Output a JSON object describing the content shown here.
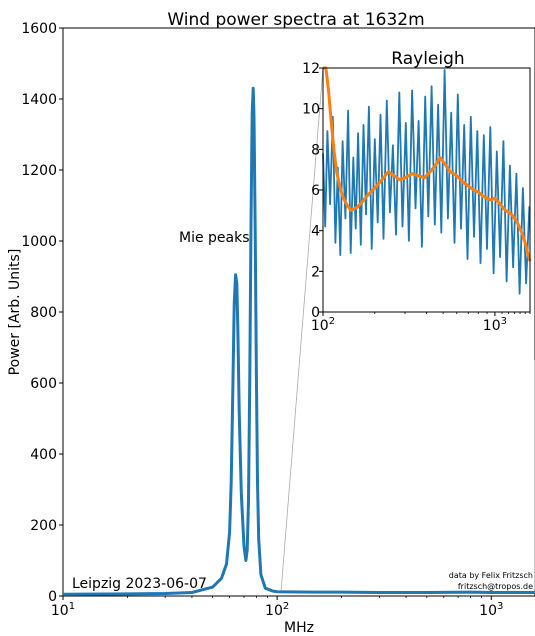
{
  "chart_data": [
    {
      "type": "line",
      "title": "Wind power spectra at 1632m",
      "xlabel": "MHz",
      "ylabel": "Power [Arb. Units]",
      "xscale": "log",
      "xlim": [
        10,
        1600
      ],
      "ylim": [
        0,
        1600
      ],
      "xticks": [
        {
          "value": 10,
          "base": "10",
          "exp": "1"
        },
        {
          "value": 100,
          "base": "10",
          "exp": "2"
        },
        {
          "value": 1000,
          "base": "10",
          "exp": "3"
        }
      ],
      "yticks": [
        0,
        200,
        400,
        600,
        800,
        1000,
        1200,
        1400,
        1600
      ],
      "series": [
        {
          "color": "#1f77b4",
          "x": [
            10,
            20,
            30,
            40,
            50,
            55,
            58,
            60,
            61,
            62,
            63,
            64,
            64.8,
            65.5,
            66.5,
            68,
            70,
            71.5,
            72.5,
            73.5,
            74.5,
            75.5,
            76.5,
            77.3,
            78,
            79,
            80,
            81,
            82,
            84,
            88,
            95,
            100,
            150,
            200,
            300,
            500,
            800,
            1000,
            1600
          ],
          "y": [
            5,
            6,
            7,
            10,
            25,
            50,
            90,
            180,
            320,
            560,
            820,
            905,
            880,
            760,
            520,
            290,
            140,
            100,
            130,
            270,
            620,
            1050,
            1360,
            1430,
            1350,
            1030,
            620,
            320,
            160,
            60,
            22,
            14,
            12,
            11,
            11,
            10,
            10,
            11,
            10,
            10
          ]
        }
      ],
      "annotations": [
        "Mie peaks",
        "Leipzig 2023-06-07",
        "data by Felix Fritzsch",
        "fritzsch@tropos.de"
      ]
    },
    {
      "type": "line",
      "title": "Rayleigh",
      "xscale": "log",
      "xlim": [
        100,
        1600
      ],
      "ylim": [
        0,
        12
      ],
      "xticks": [
        {
          "value": 100,
          "base": "10",
          "exp": "2"
        },
        {
          "value": 1000,
          "base": "10",
          "exp": "3"
        }
      ],
      "yticks": [
        0,
        2,
        4,
        6,
        8,
        10,
        12
      ],
      "series": [
        {
          "color": "#1f77b4",
          "x": [
            100,
            103,
            106,
            110,
            114,
            118,
            122,
            126,
            130,
            135,
            140,
            145,
            150,
            155,
            160,
            166,
            172,
            178,
            185,
            192,
            200,
            208,
            216,
            225,
            235,
            245,
            255,
            266,
            278,
            290,
            303,
            316,
            330,
            345,
            360,
            376,
            393,
            410,
            428,
            447,
            467,
            488,
            510,
            533,
            557,
            582,
            608,
            635,
            663,
            693,
            724,
            756,
            790,
            825,
            862,
            900,
            940,
            982,
            1026,
            1072,
            1120,
            1170,
            1222,
            1276,
            1333,
            1392,
            1454,
            1519,
            1587
          ],
          "y": [
            7.8,
            4.2,
            8.9,
            5.3,
            9.6,
            3.4,
            7.1,
            2.8,
            8.4,
            4.6,
            9.9,
            2.9,
            7.6,
            4.1,
            8.8,
            3.3,
            9.2,
            4.8,
            10.1,
            3.1,
            8.5,
            4.4,
            9.7,
            3.6,
            10.4,
            4.9,
            8.2,
            3.8,
            10.8,
            4.2,
            9.3,
            3.5,
            10.9,
            5.1,
            9.4,
            3.2,
            10.6,
            4.7,
            11.1,
            4.3,
            10.2,
            3.9,
            11.9,
            4.6,
            9.8,
            3.4,
            10.7,
            4.1,
            9.2,
            2.6,
            9.6,
            3.7,
            8.9,
            2.4,
            8.7,
            3.1,
            9.1,
            1.9,
            7.9,
            2.7,
            8.4,
            1.5,
            7.2,
            2.2,
            6.8,
            0.9,
            6.1,
            1.4,
            5.2
          ]
        },
        {
          "color": "#ff7f0e",
          "x": [
            100,
            104,
            108,
            112,
            116,
            120,
            125,
            130,
            137,
            145,
            155,
            165,
            180,
            200,
            220,
            240,
            260,
            280,
            300,
            330,
            360,
            390,
            420,
            450,
            480,
            510,
            550,
            600,
            650,
            700,
            750,
            800,
            850,
            900,
            950,
            1000,
            1050,
            1100,
            1150,
            1200,
            1250,
            1300,
            1350,
            1400,
            1450,
            1500,
            1550,
            1600
          ],
          "y": [
            12,
            12,
            10.8,
            9.2,
            7.9,
            6.9,
            6.2,
            5.7,
            5.3,
            5.0,
            5.1,
            5.3,
            5.7,
            6.1,
            6.5,
            6.9,
            6.7,
            6.5,
            6.6,
            6.8,
            6.7,
            6.6,
            6.9,
            7.2,
            7.6,
            7.3,
            6.9,
            6.7,
            6.4,
            6.2,
            6.0,
            5.9,
            5.7,
            5.6,
            5.5,
            5.6,
            5.4,
            5.2,
            5.0,
            4.9,
            4.8,
            4.6,
            4.4,
            4.1,
            3.8,
            3.4,
            2.9,
            2.5
          ]
        }
      ]
    }
  ]
}
